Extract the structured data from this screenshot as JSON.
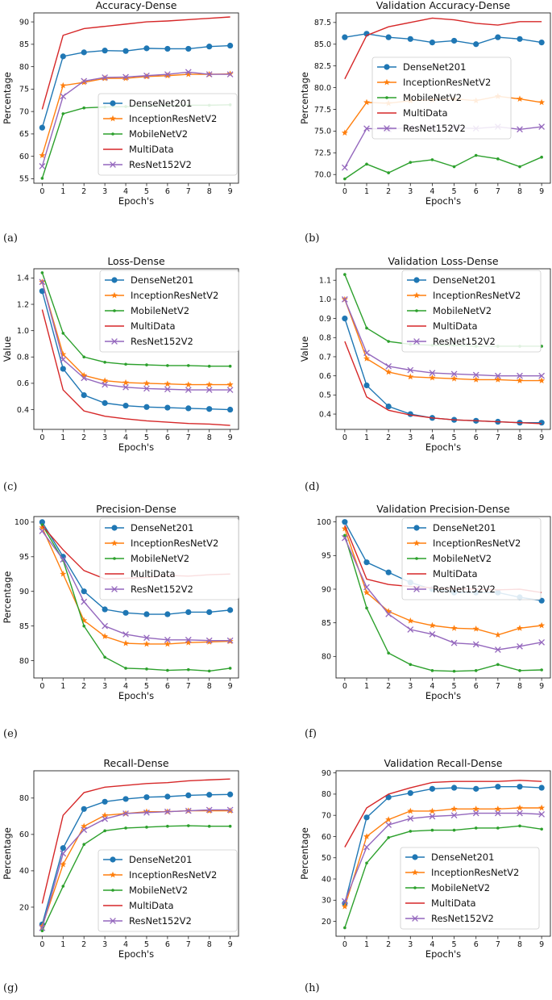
{
  "colors": {
    "DenseNet201": "#1f77b4",
    "InceptionResNetV2": "#ff7f0e",
    "MobileNetV2": "#2ca02c",
    "MultiData": "#d62728",
    "ResNet152V2": "#9467bd"
  },
  "markers": {
    "DenseNet201": "circle",
    "InceptionResNetV2": "star",
    "MobileNetV2": "dot",
    "MultiData": "none",
    "ResNet152V2": "cross"
  },
  "panel_labels": [
    "(a)",
    "(b)",
    "(c)",
    "(d)",
    "(e)",
    "(f)",
    "(g)",
    "(h)"
  ],
  "chart_data": [
    {
      "type": "line",
      "title": "Accuracy-Dense",
      "xlabel": "Epoch's",
      "ylabel": "Percentage",
      "x": [
        0,
        1,
        2,
        3,
        4,
        5,
        6,
        7,
        8,
        9
      ],
      "xticks": [
        "0",
        "1",
        "2",
        "3",
        "4",
        "5",
        "6",
        "7",
        "8",
        "9"
      ],
      "ylim": [
        54,
        92
      ],
      "yticks": [
        55,
        60,
        65,
        70,
        75,
        80,
        85,
        90
      ],
      "ytick_labels": [
        "55",
        "60",
        "65",
        "70",
        "75",
        "80",
        "85",
        "90"
      ],
      "legend": "lower-right",
      "series": [
        {
          "name": "DenseNet201",
          "values": [
            66.4,
            82.3,
            83.2,
            83.6,
            83.5,
            84.1,
            84.0,
            84.0,
            84.5,
            84.7
          ]
        },
        {
          "name": "InceptionResNetV2",
          "values": [
            60.2,
            75.8,
            76.5,
            77.4,
            77.4,
            77.8,
            78.0,
            78.3,
            78.3,
            78.4
          ]
        },
        {
          "name": "MobileNetV2",
          "values": [
            55.1,
            69.5,
            70.8,
            71.0,
            71.1,
            71.2,
            71.3,
            71.4,
            71.4,
            71.5
          ]
        },
        {
          "name": "MultiData",
          "values": [
            70.5,
            87.0,
            88.5,
            89.0,
            89.5,
            90.0,
            90.2,
            90.5,
            90.8,
            91.1
          ]
        },
        {
          "name": "ResNet152V2",
          "values": [
            57.8,
            73.4,
            76.8,
            77.6,
            77.7,
            78.0,
            78.3,
            78.8,
            78.3,
            78.3
          ]
        }
      ]
    },
    {
      "type": "line",
      "title": "Validation Accuracy-Dense",
      "xlabel": "Epoch's",
      "ylabel": "Percentage",
      "x": [
        0,
        1,
        2,
        3,
        4,
        5,
        6,
        7,
        8,
        9
      ],
      "xticks": [
        "0",
        "1",
        "2",
        "3",
        "4",
        "5",
        "6",
        "7",
        "8",
        "9"
      ],
      "ylim": [
        69.0,
        88.6
      ],
      "yticks": [
        70.0,
        72.5,
        75.0,
        77.5,
        80.0,
        82.5,
        85.0,
        87.5
      ],
      "ytick_labels": [
        "70.0",
        "72.5",
        "75.0",
        "77.5",
        "80.0",
        "82.5",
        "85.0",
        "87.5"
      ],
      "legend": "center",
      "series": [
        {
          "name": "DenseNet201",
          "values": [
            85.8,
            86.2,
            85.8,
            85.6,
            85.2,
            85.4,
            85.0,
            85.8,
            85.6,
            85.2
          ]
        },
        {
          "name": "InceptionResNetV2",
          "values": [
            74.8,
            78.3,
            78.2,
            78.5,
            78.6,
            78.7,
            78.5,
            79.0,
            78.7,
            78.3
          ]
        },
        {
          "name": "MobileNetV2",
          "values": [
            69.5,
            71.2,
            70.2,
            71.4,
            71.7,
            70.9,
            72.2,
            71.8,
            70.9,
            72.0
          ]
        },
        {
          "name": "MultiData",
          "values": [
            81.0,
            86.0,
            87.0,
            87.5,
            88.0,
            87.8,
            87.4,
            87.2,
            87.6,
            87.6
          ]
        },
        {
          "name": "ResNet152V2",
          "values": [
            70.8,
            75.3,
            75.2,
            75.4,
            75.4,
            75.4,
            75.3,
            75.5,
            75.2,
            75.5
          ]
        }
      ]
    },
    {
      "type": "line",
      "title": "Loss-Dense",
      "xlabel": "Epoch's",
      "ylabel": "Value",
      "x": [
        0,
        1,
        2,
        3,
        4,
        5,
        6,
        7,
        8,
        9
      ],
      "xticks": [
        "0",
        "1",
        "2",
        "3",
        "4",
        "5",
        "6",
        "7",
        "8",
        "9"
      ],
      "ylim": [
        0.25,
        1.47
      ],
      "yticks": [
        0.4,
        0.6,
        0.8,
        1.0,
        1.2,
        1.4
      ],
      "ytick_labels": [
        "0.4",
        "0.6",
        "0.8",
        "1.0",
        "1.2",
        "1.4"
      ],
      "legend": "upper-right",
      "series": [
        {
          "name": "DenseNet201",
          "values": [
            1.3,
            0.71,
            0.51,
            0.45,
            0.43,
            0.42,
            0.415,
            0.41,
            0.405,
            0.4
          ]
        },
        {
          "name": "InceptionResNetV2",
          "values": [
            1.37,
            0.82,
            0.66,
            0.62,
            0.605,
            0.6,
            0.595,
            0.59,
            0.59,
            0.59
          ]
        },
        {
          "name": "MobileNetV2",
          "values": [
            1.44,
            0.98,
            0.8,
            0.76,
            0.745,
            0.74,
            0.735,
            0.735,
            0.73,
            0.73
          ]
        },
        {
          "name": "MultiData",
          "values": [
            1.16,
            0.55,
            0.39,
            0.35,
            0.33,
            0.315,
            0.305,
            0.295,
            0.29,
            0.28
          ]
        },
        {
          "name": "ResNet152V2",
          "values": [
            1.37,
            0.78,
            0.64,
            0.59,
            0.57,
            0.56,
            0.555,
            0.55,
            0.55,
            0.55
          ]
        }
      ]
    },
    {
      "type": "line",
      "title": "Validation Loss-Dense",
      "xlabel": "Epoch's",
      "ylabel": "Value",
      "x": [
        0,
        1,
        2,
        3,
        4,
        5,
        6,
        7,
        8,
        9
      ],
      "xticks": [
        "0",
        "1",
        "2",
        "3",
        "4",
        "5",
        "6",
        "7",
        "8",
        "9"
      ],
      "ylim": [
        0.32,
        1.16
      ],
      "yticks": [
        0.4,
        0.5,
        0.6,
        0.7,
        0.8,
        0.9,
        1.0,
        1.1
      ],
      "ytick_labels": [
        "0.4",
        "0.5",
        "0.6",
        "0.7",
        "0.8",
        "0.9",
        "1.0",
        "1.1"
      ],
      "legend": "upper-right",
      "series": [
        {
          "name": "DenseNet201",
          "values": [
            0.9,
            0.55,
            0.44,
            0.4,
            0.38,
            0.37,
            0.365,
            0.36,
            0.355,
            0.355
          ]
        },
        {
          "name": "InceptionResNetV2",
          "values": [
            1.0,
            0.69,
            0.62,
            0.595,
            0.59,
            0.585,
            0.58,
            0.58,
            0.575,
            0.575
          ]
        },
        {
          "name": "MobileNetV2",
          "values": [
            1.13,
            0.85,
            0.78,
            0.765,
            0.76,
            0.76,
            0.755,
            0.755,
            0.755,
            0.755
          ]
        },
        {
          "name": "MultiData",
          "values": [
            0.78,
            0.49,
            0.42,
            0.395,
            0.38,
            0.37,
            0.365,
            0.36,
            0.355,
            0.35
          ]
        },
        {
          "name": "ResNet152V2",
          "values": [
            1.0,
            0.72,
            0.65,
            0.63,
            0.615,
            0.61,
            0.605,
            0.6,
            0.6,
            0.6
          ]
        }
      ]
    },
    {
      "type": "line",
      "title": "Precision-Dense",
      "xlabel": "Epoch's",
      "ylabel": "Percentage",
      "x": [
        0,
        1,
        2,
        3,
        4,
        5,
        6,
        7,
        8,
        9
      ],
      "xticks": [
        "0",
        "1",
        "2",
        "3",
        "4",
        "5",
        "6",
        "7",
        "8",
        "9"
      ],
      "ylim": [
        77.5,
        100.8
      ],
      "yticks": [
        80,
        85,
        90,
        95,
        100
      ],
      "ytick_labels": [
        "80",
        "85",
        "90",
        "95",
        "100"
      ],
      "legend": "upper-right",
      "series": [
        {
          "name": "DenseNet201",
          "values": [
            100.0,
            95.0,
            90.0,
            87.4,
            86.9,
            86.7,
            86.7,
            87.0,
            87.0,
            87.3
          ]
        },
        {
          "name": "InceptionResNetV2",
          "values": [
            99.2,
            92.5,
            85.8,
            83.5,
            82.5,
            82.4,
            82.4,
            82.6,
            82.7,
            82.8
          ]
        },
        {
          "name": "MobileNetV2",
          "values": [
            99.6,
            94.5,
            85.0,
            80.5,
            78.9,
            78.8,
            78.6,
            78.7,
            78.5,
            78.9
          ]
        },
        {
          "name": "MultiData",
          "values": [
            99.5,
            96.0,
            93.0,
            91.8,
            91.9,
            92.0,
            92.3,
            92.2,
            92.4,
            92.5
          ]
        },
        {
          "name": "ResNet152V2",
          "values": [
            98.7,
            94.6,
            88.5,
            85.0,
            83.8,
            83.3,
            83.0,
            83.0,
            82.9,
            82.9
          ]
        }
      ]
    },
    {
      "type": "line",
      "title": "Validation Precision-Dense",
      "xlabel": "Epoch's",
      "ylabel": "",
      "x": [
        0,
        1,
        2,
        3,
        4,
        5,
        6,
        7,
        8,
        9
      ],
      "xticks": [
        "0",
        "1",
        "2",
        "3",
        "4",
        "5",
        "6",
        "7",
        "8",
        "9"
      ],
      "ylim": [
        76.8,
        100.8
      ],
      "yticks": [
        80,
        85,
        90,
        95,
        100
      ],
      "ytick_labels": [
        "80",
        "85",
        "90",
        "95",
        "100"
      ],
      "legend": "upper-right",
      "series": [
        {
          "name": "DenseNet201",
          "values": [
            100.0,
            94.0,
            92.5,
            91.0,
            90.0,
            89.5,
            89.5,
            89.5,
            88.8,
            88.3
          ]
        },
        {
          "name": "InceptionResNetV2",
          "values": [
            99.0,
            89.5,
            86.7,
            85.3,
            84.6,
            84.2,
            84.1,
            83.2,
            84.2,
            84.6
          ]
        },
        {
          "name": "MobileNetV2",
          "values": [
            98.0,
            87.2,
            80.5,
            78.8,
            77.9,
            77.8,
            77.9,
            78.8,
            77.9,
            78.0
          ]
        },
        {
          "name": "MultiData",
          "values": [
            99.5,
            91.5,
            90.7,
            90.4,
            90.2,
            90.1,
            90.0,
            89.9,
            90.0,
            89.5
          ]
        },
        {
          "name": "ResNet152V2",
          "values": [
            97.6,
            90.3,
            86.3,
            84.0,
            83.3,
            82.0,
            81.8,
            81.0,
            81.5,
            82.1
          ]
        }
      ]
    },
    {
      "type": "line",
      "title": "Recall-Dense",
      "xlabel": "Epoch's",
      "ylabel": "Percentage",
      "x": [
        0,
        1,
        2,
        3,
        4,
        5,
        6,
        7,
        8,
        9
      ],
      "xticks": [
        "0",
        "1",
        "2",
        "3",
        "4",
        "5",
        "6",
        "7",
        "8",
        "9"
      ],
      "ylim": [
        4,
        95
      ],
      "yticks": [
        20,
        40,
        60,
        80
      ],
      "ytick_labels": [
        "20",
        "40",
        "60",
        "80"
      ],
      "legend": "lower-right",
      "series": [
        {
          "name": "DenseNet201",
          "values": [
            10.5,
            52.5,
            74.0,
            78.0,
            79.5,
            80.5,
            80.8,
            81.5,
            81.8,
            82.0
          ]
        },
        {
          "name": "InceptionResNetV2",
          "values": [
            9.5,
            43.5,
            64.5,
            70.5,
            71.5,
            72.5,
            72.5,
            73.0,
            73.0,
            73.0
          ]
        },
        {
          "name": "MobileNetV2",
          "values": [
            7.0,
            31.5,
            54.5,
            62.0,
            63.5,
            64.0,
            64.5,
            64.8,
            64.5,
            64.5
          ]
        },
        {
          "name": "MultiData",
          "values": [
            22.0,
            70.5,
            83.0,
            86.0,
            87.0,
            88.0,
            88.5,
            89.5,
            90.0,
            90.5
          ]
        },
        {
          "name": "ResNet152V2",
          "values": [
            8.5,
            49.5,
            62.5,
            68.5,
            71.5,
            72.0,
            72.5,
            73.0,
            73.5,
            73.5
          ]
        }
      ]
    },
    {
      "type": "line",
      "title": "Validation Recall-Dense",
      "xlabel": "Epoch's",
      "ylabel": "Percentage",
      "x": [
        0,
        1,
        2,
        3,
        4,
        5,
        6,
        7,
        8,
        9
      ],
      "xticks": [
        "0",
        "1",
        "2",
        "3",
        "4",
        "5",
        "6",
        "7",
        "8",
        "9"
      ],
      "ylim": [
        13,
        91
      ],
      "yticks": [
        20,
        30,
        40,
        50,
        60,
        70,
        80,
        90
      ],
      "ytick_labels": [
        "20",
        "30",
        "40",
        "50",
        "60",
        "70",
        "80",
        "90"
      ],
      "legend": "lower-right",
      "series": [
        {
          "name": "DenseNet201",
          "values": [
            28.5,
            69.0,
            78.5,
            80.5,
            82.5,
            83.0,
            82.5,
            83.5,
            83.5,
            83.0
          ]
        },
        {
          "name": "InceptionResNetV2",
          "values": [
            27.0,
            60.0,
            68.0,
            72.0,
            72.0,
            73.0,
            73.0,
            73.0,
            73.5,
            73.5
          ]
        },
        {
          "name": "MobileNetV2",
          "values": [
            17.0,
            47.5,
            59.5,
            62.5,
            63.0,
            63.0,
            64.0,
            64.0,
            65.0,
            63.5
          ]
        },
        {
          "name": "MultiData",
          "values": [
            55.0,
            73.5,
            80.0,
            83.0,
            85.5,
            86.0,
            86.0,
            86.0,
            86.5,
            86.0
          ]
        },
        {
          "name": "ResNet152V2",
          "values": [
            29.5,
            55.0,
            65.5,
            68.5,
            69.5,
            70.0,
            71.0,
            71.0,
            71.0,
            70.5
          ]
        }
      ]
    }
  ]
}
